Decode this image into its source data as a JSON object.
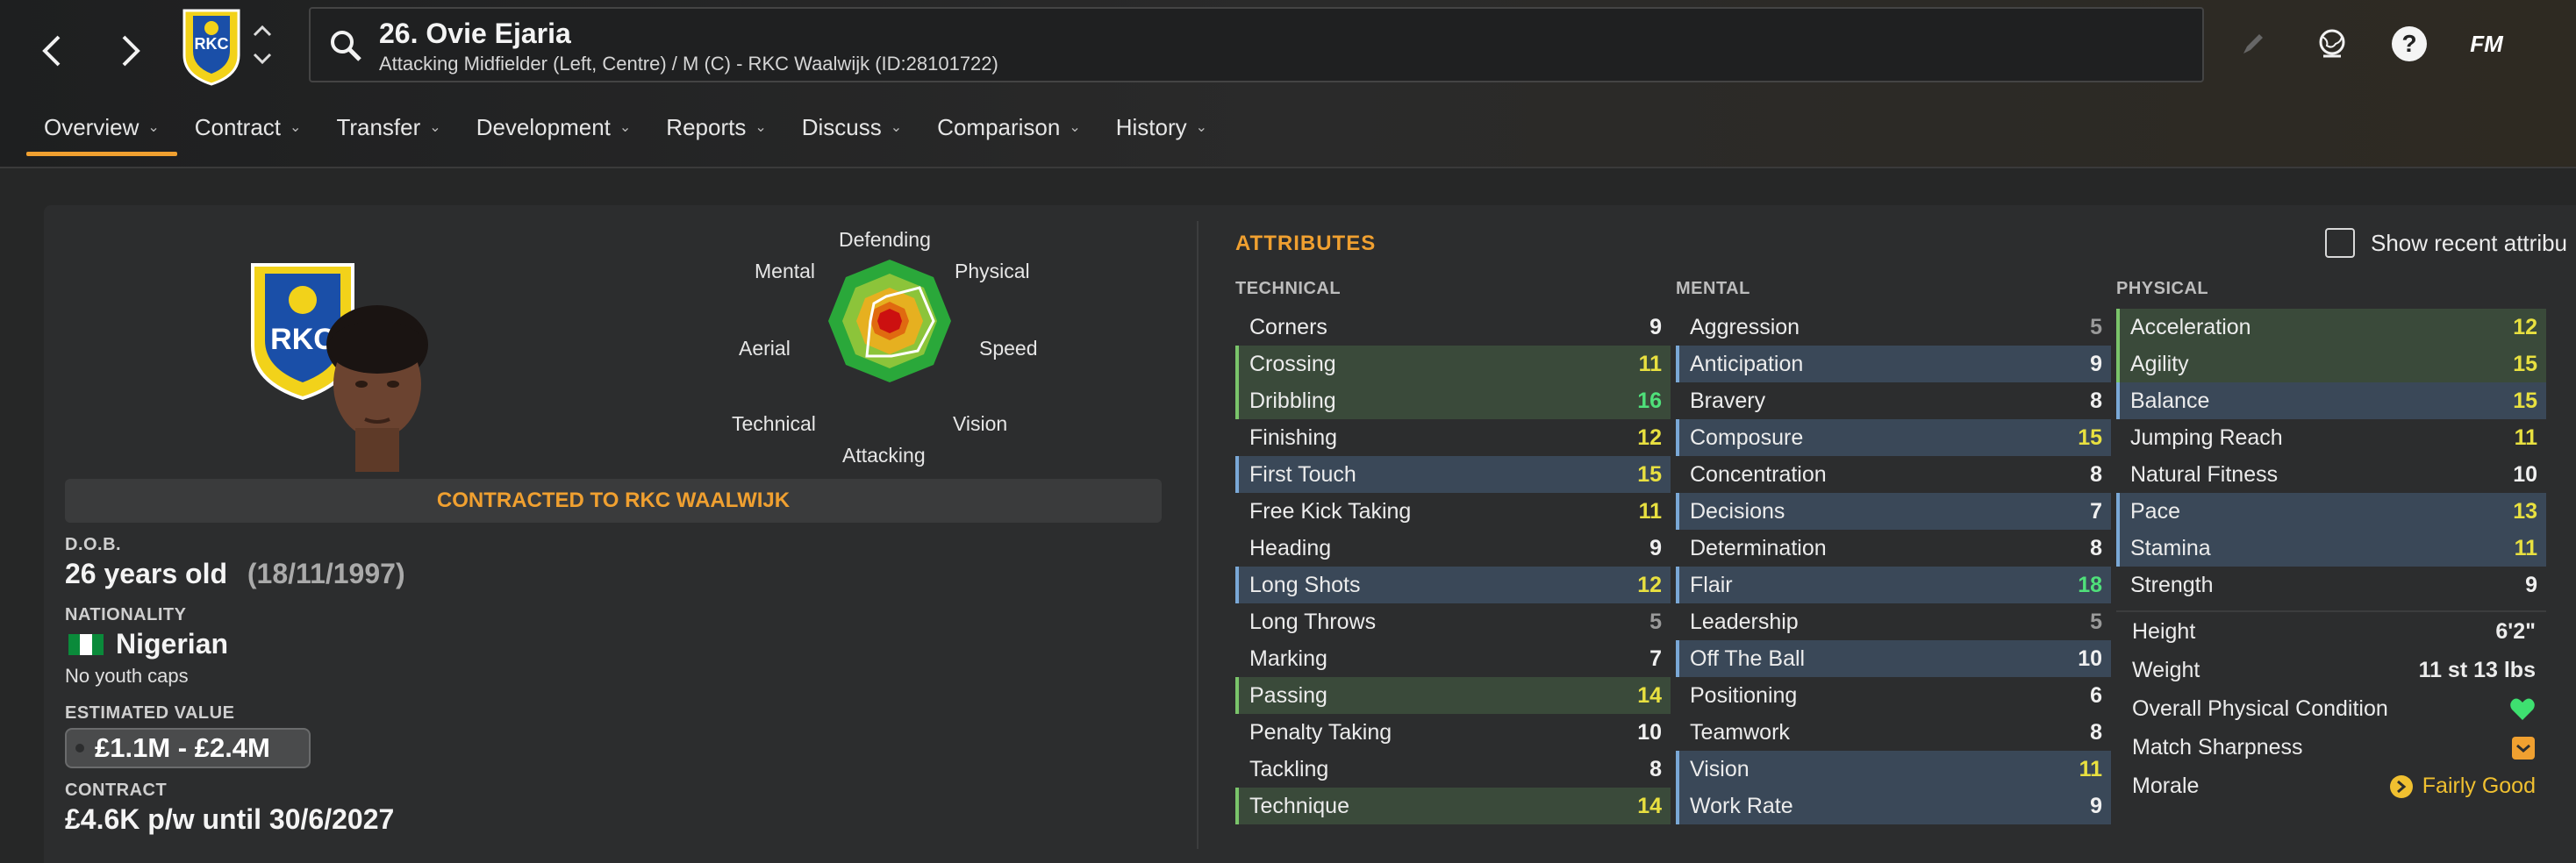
{
  "header": {
    "player_title": "26. Ovie Ejaria",
    "player_subtitle": "Attacking Midfielder (Left, Centre) / M (C) - RKC Waalwijk (ID:28101722)",
    "icons": [
      "back-arrow-icon",
      "forward-arrow-icon",
      "club-crest-icon",
      "chevron-up-icon",
      "chevron-down-icon",
      "search-icon",
      "pencil-icon",
      "globe-icon",
      "help-icon",
      "fm-logo-icon"
    ],
    "fm_logo_text": "FM"
  },
  "tabs": [
    {
      "label": "Overview"
    },
    {
      "label": "Contract"
    },
    {
      "label": "Transfer"
    },
    {
      "label": "Development"
    },
    {
      "label": "Reports"
    },
    {
      "label": "Discuss"
    },
    {
      "label": "Comparison"
    },
    {
      "label": "History"
    }
  ],
  "radar": {
    "labels": {
      "defending": "Defending",
      "physical": "Physical",
      "speed": "Speed",
      "vision": "Vision",
      "attacking": "Attacking",
      "technical": "Technical",
      "aerial": "Aerial",
      "mental": "Mental"
    }
  },
  "crest_text": "RKC",
  "contract_banner": "CONTRACTED TO RKC WAALWIJK",
  "info": {
    "dob_label": "D.O.B.",
    "dob_age": "26 years old",
    "dob_date": "(18/11/1997)",
    "nationality_label": "NATIONALITY",
    "nationality": "Nigerian",
    "youth_caps": "No youth caps",
    "value_label": "ESTIMATED VALUE",
    "value": "£1.1M - £2.4M",
    "contract_label": "CONTRACT",
    "contract": "£4.6K p/w until 30/6/2027"
  },
  "attributes": {
    "title": "ATTRIBUTES",
    "show_recent": "Show recent attribu",
    "technical_header": "TECHNICAL",
    "mental_header": "MENTAL",
    "physical_header": "PHYSICAL",
    "technical": [
      {
        "name": "Corners",
        "value": "9",
        "hl": "",
        "tier": "mid"
      },
      {
        "name": "Crossing",
        "value": "11",
        "hl": "green",
        "tier": "good"
      },
      {
        "name": "Dribbling",
        "value": "16",
        "hl": "green",
        "tier": "great"
      },
      {
        "name": "Finishing",
        "value": "12",
        "hl": "",
        "tier": "good"
      },
      {
        "name": "First Touch",
        "value": "15",
        "hl": "blue",
        "tier": "good"
      },
      {
        "name": "Free Kick Taking",
        "value": "11",
        "hl": "",
        "tier": "good"
      },
      {
        "name": "Heading",
        "value": "9",
        "hl": "",
        "tier": "mid"
      },
      {
        "name": "Long Shots",
        "value": "12",
        "hl": "blue",
        "tier": "good"
      },
      {
        "name": "Long Throws",
        "value": "5",
        "hl": "",
        "tier": "low"
      },
      {
        "name": "Marking",
        "value": "7",
        "hl": "",
        "tier": "mid"
      },
      {
        "name": "Passing",
        "value": "14",
        "hl": "green",
        "tier": "good"
      },
      {
        "name": "Penalty Taking",
        "value": "10",
        "hl": "",
        "tier": "mid"
      },
      {
        "name": "Tackling",
        "value": "8",
        "hl": "",
        "tier": "mid"
      },
      {
        "name": "Technique",
        "value": "14",
        "hl": "green",
        "tier": "good"
      }
    ],
    "mental": [
      {
        "name": "Aggression",
        "value": "5",
        "hl": "",
        "tier": "low"
      },
      {
        "name": "Anticipation",
        "value": "9",
        "hl": "blue",
        "tier": "mid"
      },
      {
        "name": "Bravery",
        "value": "8",
        "hl": "",
        "tier": "mid"
      },
      {
        "name": "Composure",
        "value": "15",
        "hl": "blue",
        "tier": "good"
      },
      {
        "name": "Concentration",
        "value": "8",
        "hl": "",
        "tier": "mid"
      },
      {
        "name": "Decisions",
        "value": "7",
        "hl": "blue",
        "tier": "mid"
      },
      {
        "name": "Determination",
        "value": "8",
        "hl": "",
        "tier": "mid"
      },
      {
        "name": "Flair",
        "value": "18",
        "hl": "blue",
        "tier": "great"
      },
      {
        "name": "Leadership",
        "value": "5",
        "hl": "",
        "tier": "low"
      },
      {
        "name": "Off The Ball",
        "value": "10",
        "hl": "blue",
        "tier": "mid"
      },
      {
        "name": "Positioning",
        "value": "6",
        "hl": "",
        "tier": "mid"
      },
      {
        "name": "Teamwork",
        "value": "8",
        "hl": "",
        "tier": "mid"
      },
      {
        "name": "Vision",
        "value": "11",
        "hl": "blue",
        "tier": "good"
      },
      {
        "name": "Work Rate",
        "value": "9",
        "hl": "blue",
        "tier": "mid"
      }
    ],
    "physical": [
      {
        "name": "Acceleration",
        "value": "12",
        "hl": "green",
        "tier": "good"
      },
      {
        "name": "Agility",
        "value": "15",
        "hl": "green",
        "tier": "good"
      },
      {
        "name": "Balance",
        "value": "15",
        "hl": "blue",
        "tier": "good"
      },
      {
        "name": "Jumping Reach",
        "value": "11",
        "hl": "",
        "tier": "good"
      },
      {
        "name": "Natural Fitness",
        "value": "10",
        "hl": "",
        "tier": "mid"
      },
      {
        "name": "Pace",
        "value": "13",
        "hl": "blue",
        "tier": "good"
      },
      {
        "name": "Stamina",
        "value": "11",
        "hl": "blue",
        "tier": "good"
      },
      {
        "name": "Strength",
        "value": "9",
        "hl": "",
        "tier": "mid"
      }
    ],
    "extra": {
      "height_label": "Height",
      "height": "6'2\"",
      "weight_label": "Weight",
      "weight": "11 st 13 lbs",
      "condition_label": "Overall Physical Condition",
      "sharpness_label": "Match Sharpness",
      "morale_label": "Morale",
      "morale": "Fairly Good"
    }
  },
  "colors": {
    "accent": "#f0a030",
    "great": "#4fe07a",
    "good": "#e8e040"
  }
}
